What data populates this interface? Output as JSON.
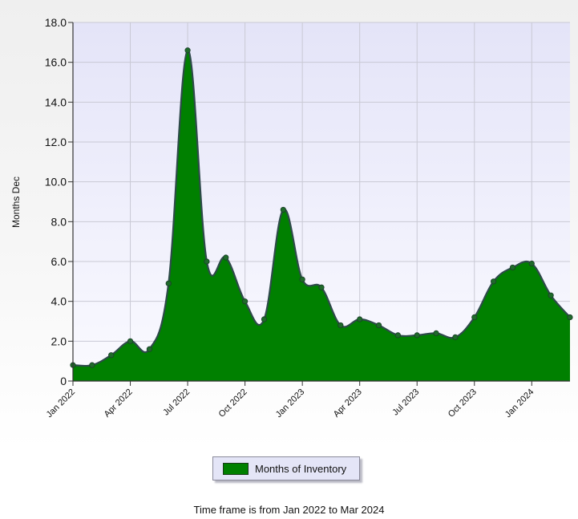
{
  "chart_data": {
    "type": "area",
    "ylabel": "Months Dec",
    "xlabel": "",
    "ylim": [
      0,
      18
    ],
    "yticks": [
      "0",
      "2.0",
      "4.0",
      "6.0",
      "8.0",
      "10.0",
      "12.0",
      "14.0",
      "16.0",
      "18.0"
    ],
    "xticks": [
      "Jan 2022",
      "Apr 2022",
      "Jul 2022",
      "Oct 2022",
      "Jan 2023",
      "Apr 2023",
      "Jul 2023",
      "Oct 2023",
      "Jan 2024"
    ],
    "x": [
      "Jan 2022",
      "Feb 2022",
      "Mar 2022",
      "Apr 2022",
      "May 2022",
      "Jun 2022",
      "Jul 2022",
      "Aug 2022",
      "Sep 2022",
      "Oct 2022",
      "Nov 2022",
      "Dec 2022",
      "Jan 2023",
      "Feb 2023",
      "Mar 2023",
      "Apr 2023",
      "May 2023",
      "Jun 2023",
      "Jul 2023",
      "Aug 2023",
      "Sep 2023",
      "Oct 2023",
      "Nov 2023",
      "Dec 2023",
      "Jan 2024",
      "Feb 2024",
      "Mar 2024"
    ],
    "series": [
      {
        "name": "Months of Inventory",
        "values": [
          0.8,
          0.8,
          1.3,
          2.0,
          1.6,
          4.9,
          16.6,
          6.0,
          6.2,
          4.0,
          3.1,
          8.6,
          5.1,
          4.7,
          2.8,
          3.1,
          2.8,
          2.3,
          2.3,
          2.4,
          2.2,
          3.2,
          5.0,
          5.7,
          5.9,
          4.3,
          3.2
        ]
      }
    ],
    "grid": true,
    "legend": "bottom",
    "colors": {
      "fill": "#008000",
      "line": "#2e4a4a",
      "plot_bg_top": "#e4e4f8",
      "plot_bg_bottom": "#fafaff",
      "grid": "#c9c9d4"
    }
  },
  "legend": {
    "label": "Months of Inventory"
  },
  "footer": {
    "text": "Time frame is from Jan 2022 to Mar 2024"
  }
}
